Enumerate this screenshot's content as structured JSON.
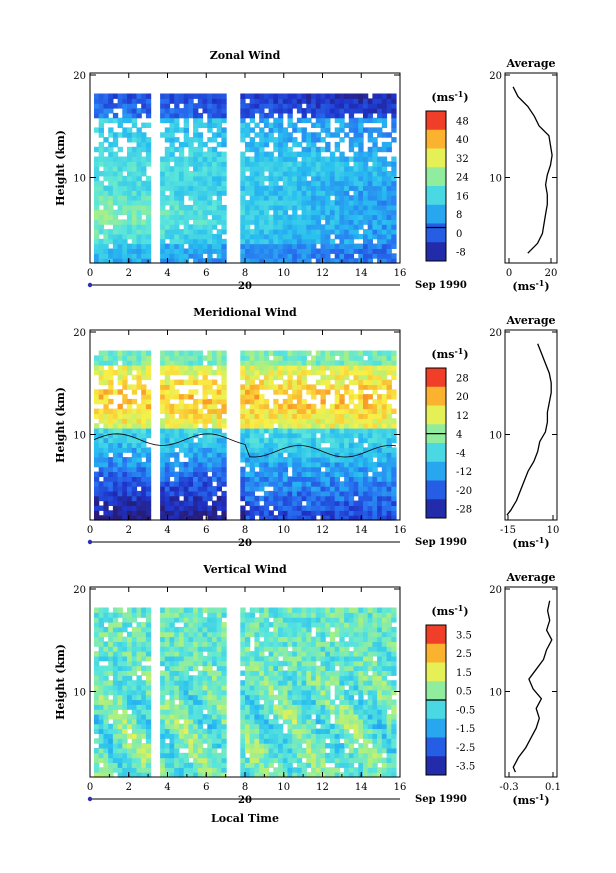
{
  "figure": {
    "date_label": "Sep 1990",
    "xlabel": "Local Time",
    "day_label": "20"
  },
  "chart_data": [
    {
      "type": "heatmap",
      "title": "Zonal Wind",
      "xlabel": "",
      "ylabel": "Height (km)",
      "x_ticks": [
        "0",
        "2",
        "4",
        "6",
        "8",
        "10",
        "12",
        "14",
        "16"
      ],
      "xlim": [
        0,
        16
      ],
      "y_ticks": [
        "20",
        "10"
      ],
      "ylim": [
        1,
        20
      ],
      "colorbar": {
        "unit": "(ms",
        "unit_sup": "-1",
        "labels": [
          "48",
          "40",
          "32",
          "24",
          "16",
          "8",
          "0",
          "-8"
        ],
        "range": [
          -12,
          52
        ]
      },
      "data_gaps_hours": [
        [
          2.9,
          3.5
        ],
        [
          7.0,
          7.8
        ]
      ],
      "features": "jet maximum ~24-30 m/s between 4 and 8 km early in the period; weak winds 0-10 m/s at 12-17 km; winds decrease with time",
      "average_profile": {
        "title": "Average",
        "xlabel": "(ms",
        "xlabel_sup": "-1",
        "x_ticks": [
          "0",
          "20"
        ],
        "xlim": [
          -8,
          24
        ],
        "y_ticks": [
          "20",
          "10"
        ],
        "ylim": [
          1,
          20
        ],
        "height_km": [
          2,
          3,
          4,
          5,
          6,
          7,
          8,
          9,
          10,
          11,
          12,
          13,
          14,
          15,
          16,
          17,
          18,
          19
        ],
        "speed": [
          6,
          12,
          15,
          16,
          17,
          18,
          18,
          17,
          18,
          20,
          21,
          20,
          19,
          13,
          10,
          6,
          0,
          -3
        ]
      }
    },
    {
      "type": "heatmap",
      "title": "Meridional Wind",
      "xlabel": "",
      "ylabel": "Height (km)",
      "x_ticks": [
        "0",
        "2",
        "4",
        "6",
        "8",
        "10",
        "12",
        "14",
        "16"
      ],
      "xlim": [
        0,
        16
      ],
      "y_ticks": [
        "20",
        "10"
      ],
      "ylim": [
        1,
        20
      ],
      "colorbar": {
        "unit": "(ms",
        "unit_sup": "-1",
        "labels": [
          "28",
          "20",
          "12",
          "4",
          "-4",
          "-12",
          "-20",
          "-28"
        ],
        "range": [
          -32,
          32
        ]
      },
      "data_gaps_hours": [
        [
          2.9,
          3.5
        ],
        [
          7.0,
          7.8
        ]
      ],
      "features": "northward wind 12-24 m/s at 11-17 km; southward wind -12 to -28 m/s below 6 km, strongest before 8 LT",
      "average_profile": {
        "title": "Average",
        "xlabel": "(ms",
        "xlabel_sup": "-1",
        "x_ticks": [
          "-15",
          "10"
        ],
        "xlim": [
          -15,
          12
        ],
        "y_ticks": [
          "20",
          "10"
        ],
        "ylim": [
          1,
          20
        ],
        "height_km": [
          1.5,
          2,
          3,
          4,
          5,
          6,
          7,
          8,
          9,
          10,
          11,
          12,
          13,
          14,
          15,
          16,
          17,
          18,
          19
        ],
        "speed": [
          -14,
          -12,
          -9,
          -7,
          -5,
          -3,
          0,
          2,
          3,
          6,
          7,
          7,
          8,
          9,
          9,
          8,
          6,
          4,
          2
        ]
      }
    },
    {
      "type": "heatmap",
      "title": "Vertical Wind",
      "xlabel": "Local Time",
      "ylabel": "Height (km)",
      "x_ticks": [
        "0",
        "2",
        "4",
        "6",
        "8",
        "10",
        "12",
        "14",
        "16"
      ],
      "xlim": [
        0,
        16
      ],
      "y_ticks": [
        "20",
        "10"
      ],
      "ylim": [
        1,
        20
      ],
      "colorbar": {
        "unit": "(ms",
        "unit_sup": "-1",
        "labels": [
          "3.5",
          "2.5",
          "1.5",
          "0.5",
          "-0.5",
          "-1.5",
          "-2.5",
          "-3.5"
        ],
        "range": [
          -4,
          4
        ]
      },
      "data_gaps_hours": [
        [
          2.9,
          3.5
        ],
        [
          7.0,
          7.8
        ]
      ],
      "features": "mostly weak vertical wind -0.5 to 0.5 m/s with scattered updrafts/downdrafts up to about 2 m/s",
      "average_profile": {
        "title": "Average",
        "xlabel": "(ms",
        "xlabel_sup": "-1",
        "x_ticks": [
          "-0.3",
          "0.1"
        ],
        "xlim": [
          -0.35,
          0.15
        ],
        "y_ticks": [
          "20",
          "10"
        ],
        "ylim": [
          1,
          20
        ],
        "height_km": [
          1.5,
          2,
          3,
          4,
          5,
          6,
          7,
          8,
          9,
          10,
          11,
          12,
          13,
          14,
          15,
          16,
          17,
          18,
          19
        ],
        "speed": [
          -0.25,
          -0.27,
          -0.22,
          -0.15,
          -0.1,
          -0.05,
          -0.02,
          -0.05,
          0.0,
          -0.08,
          -0.12,
          -0.05,
          0.02,
          0.05,
          0.1,
          0.05,
          0.08,
          0.06,
          0.08
        ]
      }
    }
  ]
}
